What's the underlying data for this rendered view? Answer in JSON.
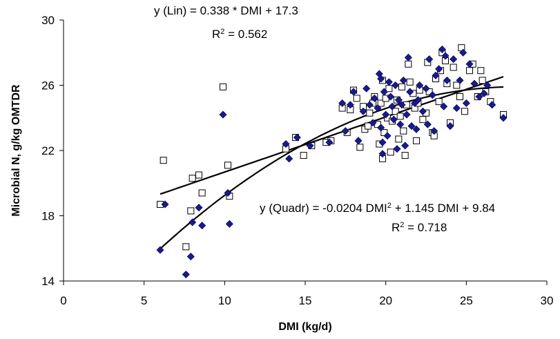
{
  "chart_data": {
    "type": "scatter",
    "title": "",
    "xlabel": "DMI (kg/d)",
    "ylabel": "Microbial N, g/kg OMTDR",
    "xlim": [
      0,
      30
    ],
    "ylim": [
      14,
      30
    ],
    "xticks": [
      0,
      5,
      10,
      15,
      20,
      25,
      30
    ],
    "yticks": [
      14,
      18,
      22,
      26,
      30
    ],
    "grid": false,
    "legend": "none",
    "series": [
      {
        "marker": "square-open",
        "color": "#000000",
        "points": [
          [
            6.0,
            18.7
          ],
          [
            6.2,
            21.4
          ],
          [
            7.6,
            16.1
          ],
          [
            7.9,
            18.3
          ],
          [
            8.0,
            20.3
          ],
          [
            8.4,
            20.5
          ],
          [
            8.6,
            19.4
          ],
          [
            9.9,
            25.9
          ],
          [
            10.2,
            21.1
          ],
          [
            10.3,
            19.2
          ],
          [
            13.8,
            22.1
          ],
          [
            14.4,
            22.8
          ],
          [
            14.9,
            21.7
          ],
          [
            15.4,
            22.3
          ],
          [
            16.3,
            22.5
          ],
          [
            16.6,
            22.6
          ],
          [
            17.3,
            24.6
          ],
          [
            17.6,
            23.1
          ],
          [
            17.8,
            24.5
          ],
          [
            18.0,
            25.7
          ],
          [
            18.2,
            25.2
          ],
          [
            18.4,
            22.2
          ],
          [
            18.6,
            24.7
          ],
          [
            18.7,
            23.3
          ],
          [
            18.9,
            23.5
          ],
          [
            19.0,
            24.3
          ],
          [
            19.2,
            24.9
          ],
          [
            19.3,
            25.3
          ],
          [
            19.5,
            23.6
          ],
          [
            19.6,
            22.4
          ],
          [
            19.7,
            24.9
          ],
          [
            19.8,
            21.5
          ],
          [
            19.8,
            26.3
          ],
          [
            19.9,
            23.1
          ],
          [
            20.0,
            25.2
          ],
          [
            20.1,
            24.0
          ],
          [
            20.2,
            25.8
          ],
          [
            20.3,
            21.9
          ],
          [
            20.4,
            23.8
          ],
          [
            20.6,
            24.4
          ],
          [
            20.7,
            25.1
          ],
          [
            20.8,
            22.7
          ],
          [
            20.9,
            24.1
          ],
          [
            21.0,
            25.9
          ],
          [
            21.1,
            23.2
          ],
          [
            21.2,
            21.7
          ],
          [
            21.3,
            24.8
          ],
          [
            21.4,
            27.3
          ],
          [
            21.5,
            26.2
          ],
          [
            21.7,
            25.5
          ],
          [
            21.8,
            24.6
          ],
          [
            21.9,
            22.6
          ],
          [
            22.0,
            24.9
          ],
          [
            22.1,
            25.7
          ],
          [
            22.3,
            23.9
          ],
          [
            22.5,
            24.3
          ],
          [
            22.6,
            27.4
          ],
          [
            22.7,
            25.6
          ],
          [
            22.9,
            23.1
          ],
          [
            23.0,
            22.9
          ],
          [
            23.1,
            26.4
          ],
          [
            23.3,
            25.0
          ],
          [
            23.4,
            26.9
          ],
          [
            23.5,
            28.0
          ],
          [
            23.7,
            27.5
          ],
          [
            23.8,
            26.1
          ],
          [
            24.0,
            23.7
          ],
          [
            24.2,
            27.1
          ],
          [
            24.4,
            26.0
          ],
          [
            24.6,
            25.3
          ],
          [
            24.7,
            28.3
          ],
          [
            24.9,
            24.4
          ],
          [
            25.2,
            26.9
          ],
          [
            25.4,
            27.3
          ],
          [
            25.7,
            25.3
          ],
          [
            25.9,
            26.9
          ],
          [
            26.0,
            26.3
          ],
          [
            26.2,
            25.6
          ],
          [
            26.5,
            25.0
          ],
          [
            27.3,
            24.2
          ]
        ]
      },
      {
        "marker": "diamond-filled",
        "color": "#1a1a8c",
        "points": [
          [
            6.0,
            15.9
          ],
          [
            6.3,
            18.7
          ],
          [
            7.6,
            14.4
          ],
          [
            7.9,
            15.5
          ],
          [
            8.0,
            17.6
          ],
          [
            8.4,
            18.5
          ],
          [
            8.6,
            17.4
          ],
          [
            9.9,
            24.2
          ],
          [
            10.2,
            19.4
          ],
          [
            10.3,
            17.5
          ],
          [
            13.8,
            22.4
          ],
          [
            14.0,
            21.5
          ],
          [
            14.5,
            22.8
          ],
          [
            15.3,
            22.3
          ],
          [
            16.5,
            22.5
          ],
          [
            17.3,
            24.9
          ],
          [
            17.5,
            23.2
          ],
          [
            17.8,
            24.8
          ],
          [
            18.0,
            25.6
          ],
          [
            18.3,
            22.6
          ],
          [
            18.6,
            24.4
          ],
          [
            18.8,
            25.8
          ],
          [
            19.0,
            24.8
          ],
          [
            19.2,
            23.7
          ],
          [
            19.3,
            25.2
          ],
          [
            19.5,
            24.6
          ],
          [
            19.6,
            26.7
          ],
          [
            19.7,
            26.4
          ],
          [
            19.7,
            23.4
          ],
          [
            19.8,
            22.5
          ],
          [
            19.8,
            21.8
          ],
          [
            19.9,
            25.6
          ],
          [
            20.0,
            24.2
          ],
          [
            20.1,
            22.9
          ],
          [
            20.2,
            26.2
          ],
          [
            20.3,
            25.3
          ],
          [
            20.4,
            24.7
          ],
          [
            20.5,
            23.9
          ],
          [
            20.6,
            26.0
          ],
          [
            20.7,
            22.1
          ],
          [
            20.8,
            25.1
          ],
          [
            20.9,
            23.6
          ],
          [
            21.0,
            24.8
          ],
          [
            21.1,
            26.3
          ],
          [
            21.2,
            22.3
          ],
          [
            21.3,
            24.2
          ],
          [
            21.4,
            27.7
          ],
          [
            21.5,
            25.6
          ],
          [
            21.6,
            23.5
          ],
          [
            21.8,
            24.9
          ],
          [
            21.9,
            23.3
          ],
          [
            22.0,
            25.1
          ],
          [
            22.1,
            26.0
          ],
          [
            22.3,
            24.4
          ],
          [
            22.5,
            25.8
          ],
          [
            22.6,
            23.6
          ],
          [
            22.7,
            27.6
          ],
          [
            22.9,
            25.4
          ],
          [
            23.0,
            23.2
          ],
          [
            23.1,
            26.6
          ],
          [
            23.3,
            27.0
          ],
          [
            23.5,
            28.2
          ],
          [
            23.6,
            24.7
          ],
          [
            23.7,
            27.8
          ],
          [
            23.8,
            26.3
          ],
          [
            24.0,
            23.5
          ],
          [
            24.2,
            27.6
          ],
          [
            24.4,
            24.6
          ],
          [
            24.6,
            26.3
          ],
          [
            24.8,
            28.0
          ],
          [
            25.0,
            24.9
          ],
          [
            25.2,
            27.3
          ],
          [
            25.5,
            26.1
          ],
          [
            25.8,
            25.3
          ],
          [
            26.1,
            25.5
          ],
          [
            26.3,
            26.0
          ],
          [
            26.6,
            24.8
          ],
          [
            27.3,
            24.0
          ]
        ]
      }
    ],
    "trendlines": [
      {
        "model": "linear",
        "equation": "y (Lin) = 0.338 * DMI  + 17.3",
        "r2_text": "R² = 0.562",
        "coef": {
          "a": 0,
          "b": 0.338,
          "c": 17.3
        },
        "x_range": [
          6.0,
          27.3
        ]
      },
      {
        "model": "quadratic",
        "equation": "y (Quadr) = -0.0204 DMI² + 1.145 DMI + 9.84",
        "r2_text": "R² = 0.718",
        "coef": {
          "a": -0.0204,
          "b": 1.145,
          "c": 9.84
        },
        "x_range": [
          6.0,
          27.3
        ]
      }
    ]
  }
}
